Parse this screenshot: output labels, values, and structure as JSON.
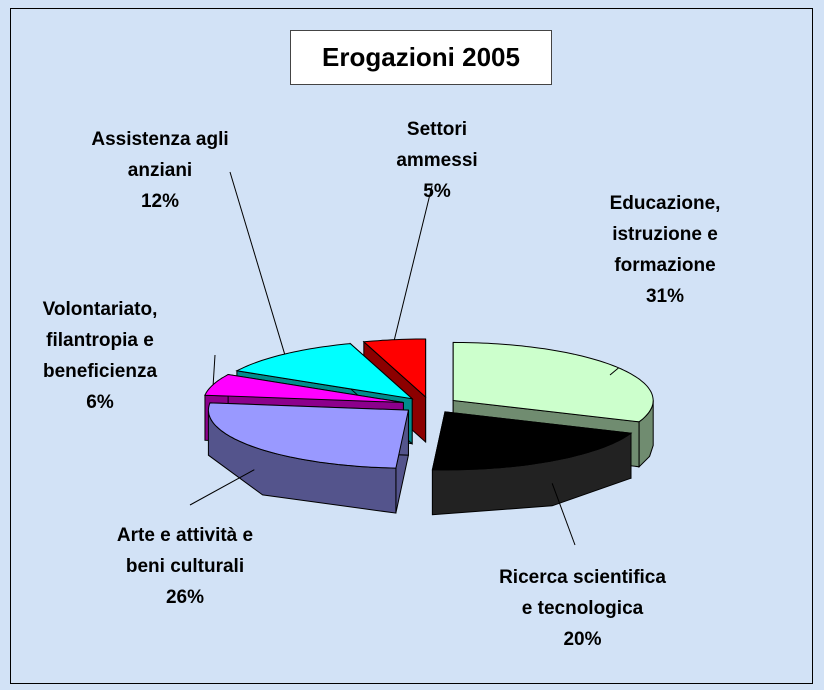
{
  "chart_data": {
    "type": "pie3d",
    "title": "Erogazioni 2005",
    "categories": [
      "Educazione, istruzione e formazione",
      "Ricerca scientifica e tecnologica",
      "Arte e attività e beni culturali",
      "Volontariato, filantropia e beneficienza",
      "Assistenza agli anziani",
      "Settori ammessi"
    ],
    "values": [
      31,
      20,
      26,
      6,
      12,
      5
    ],
    "value_labels": [
      "31%",
      "20%",
      "26%",
      "6%",
      "12%",
      "5%"
    ],
    "colors": [
      "#ccffcc",
      "#000000",
      "#9999ff",
      "#ff00ff",
      "#00ffff",
      "#ff0000"
    ]
  }
}
